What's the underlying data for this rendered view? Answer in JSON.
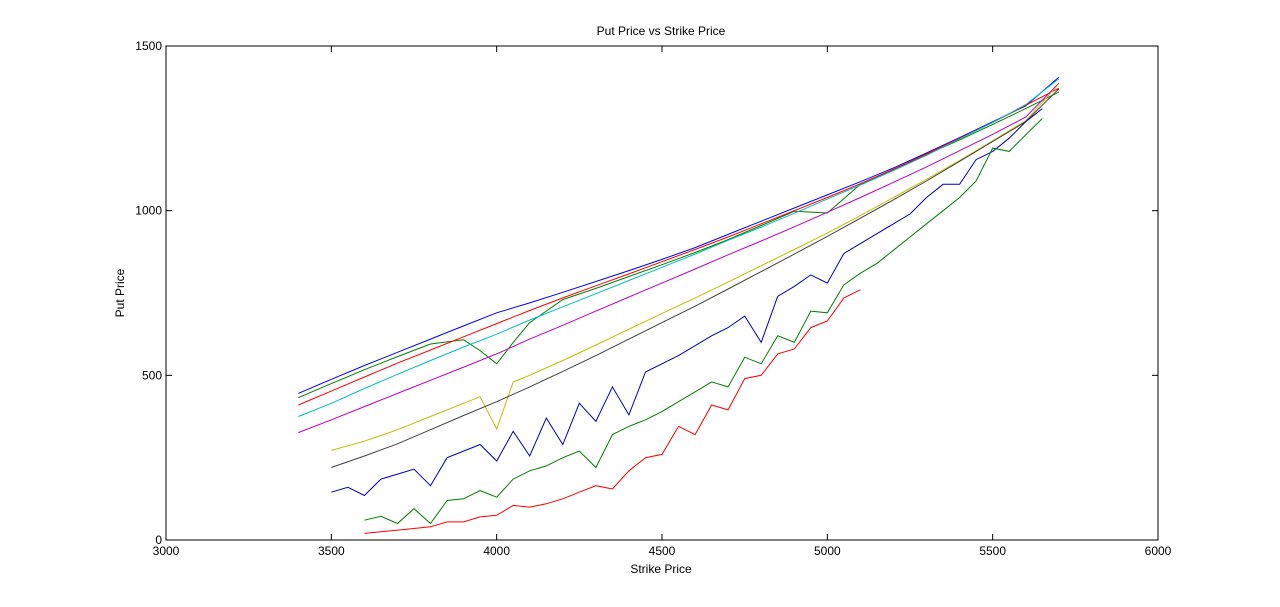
{
  "chart_data": {
    "type": "line",
    "title": "Put Price vs Strike Price",
    "xlabel": "Strike Price",
    "ylabel": "Put Price",
    "xlim": [
      3000,
      6000
    ],
    "ylim": [
      0,
      1500
    ],
    "xticks": [
      3000,
      3500,
      4000,
      4500,
      5000,
      5500,
      6000
    ],
    "yticks": [
      0,
      500,
      1000,
      1500
    ],
    "grid": false,
    "series": [
      {
        "color": "#0000ff",
        "x": [
          3400,
          3500,
          3600,
          3700,
          3800,
          3900,
          4000,
          4100,
          4200,
          4300,
          4400,
          4500,
          4600,
          4700,
          4800,
          4900,
          5000,
          5100,
          5200,
          5300,
          5400,
          5500,
          5600,
          5700
        ],
        "y": [
          445,
          488,
          530,
          570,
          610,
          650,
          690,
          720,
          752,
          785,
          818,
          852,
          888,
          928,
          968,
          1008,
          1048,
          1088,
          1130,
          1175,
          1222,
          1270,
          1318,
          1405
        ]
      },
      {
        "color": "#008000",
        "x": [
          3400,
          3500,
          3600,
          3700,
          3800,
          3900,
          3950,
          4000,
          4050,
          4100,
          4200,
          4300,
          4400,
          4500,
          4600,
          4700,
          4800,
          4900,
          5000,
          5100,
          5200,
          5300,
          5400,
          5500,
          5600,
          5700
        ],
        "y": [
          432,
          475,
          517,
          557,
          595,
          608,
          575,
          535,
          600,
          660,
          730,
          764,
          800,
          836,
          873,
          912,
          955,
          998,
          993,
          1080,
          1125,
          1170,
          1215,
          1262,
          1310,
          1360
        ]
      },
      {
        "color": "#ff0000",
        "x": [
          3400,
          3500,
          3600,
          3700,
          3800,
          3900,
          4000,
          4100,
          4200,
          4300,
          4400,
          4500,
          4600,
          4700,
          4800,
          4900,
          5000,
          5100,
          5200,
          5300,
          5400,
          5500,
          5600,
          5700
        ],
        "y": [
          410,
          452,
          495,
          537,
          577,
          617,
          657,
          697,
          735,
          772,
          808,
          845,
          882,
          920,
          960,
          1000,
          1040,
          1082,
          1126,
          1172,
          1220,
          1268,
          1320,
          1372
        ]
      },
      {
        "color": "#00bfbf",
        "x": [
          3400,
          3500,
          3600,
          3700,
          3800,
          3900,
          4000,
          4100,
          4200,
          4300,
          4400,
          4500,
          4600,
          4700,
          4800,
          4900,
          5000,
          5100,
          5200,
          5300,
          5400,
          5500,
          5600,
          5700
        ],
        "y": [
          375,
          415,
          460,
          503,
          545,
          586,
          625,
          668,
          708,
          748,
          788,
          828,
          868,
          910,
          950,
          992,
          1035,
          1078,
          1122,
          1168,
          1218,
          1268,
          1322,
          1400
        ]
      },
      {
        "color": "#bf00bf",
        "x": [
          3400,
          3500,
          3600,
          3700,
          3800,
          3900,
          4000,
          4100,
          4200,
          4300,
          4400,
          4500,
          4600,
          4700,
          4800,
          4900,
          5000,
          5100,
          5200,
          5300,
          5400,
          5500,
          5600,
          5700
        ],
        "y": [
          326,
          365,
          405,
          445,
          485,
          525,
          565,
          610,
          652,
          695,
          738,
          780,
          823,
          866,
          908,
          951,
          995,
          1040,
          1086,
          1133,
          1182,
          1232,
          1284,
          1387
        ]
      },
      {
        "color": "#bfbf00",
        "x": [
          3500,
          3600,
          3700,
          3800,
          3900,
          3950,
          4000,
          4050,
          4100,
          4200,
          4300,
          4400,
          4500,
          4600,
          4700,
          4800,
          4900,
          5000,
          5100,
          5200,
          5300,
          5400,
          5500,
          5600,
          5700
        ],
        "y": [
          272,
          300,
          335,
          375,
          415,
          435,
          337,
          480,
          500,
          545,
          592,
          640,
          688,
          735,
          783,
          833,
          882,
          932,
          985,
          1040,
          1095,
          1152,
          1212,
          1273,
          1385
        ]
      },
      {
        "color": "#404040",
        "x": [
          3500,
          3600,
          3700,
          3800,
          3900,
          4000,
          4100,
          4200,
          4300,
          4400,
          4500,
          4600,
          4700,
          4800,
          4900,
          5000,
          5100,
          5200,
          5300,
          5400,
          5500,
          5600,
          5700
        ],
        "y": [
          220,
          255,
          292,
          335,
          378,
          420,
          465,
          512,
          560,
          610,
          660,
          710,
          762,
          815,
          868,
          922,
          977,
          1033,
          1090,
          1150,
          1210,
          1270,
          1370
        ]
      },
      {
        "color": "#0000bf",
        "x": [
          3500,
          3550,
          3600,
          3650,
          3700,
          3750,
          3800,
          3850,
          3900,
          3950,
          4000,
          4050,
          4100,
          4150,
          4200,
          4250,
          4300,
          4350,
          4400,
          4450,
          4500,
          4550,
          4600,
          4650,
          4700,
          4750,
          4800,
          4850,
          4900,
          4950,
          5000,
          5050,
          5100,
          5150,
          5200,
          5250,
          5300,
          5350,
          5400,
          5450,
          5500,
          5550,
          5600,
          5650
        ],
        "y": [
          145,
          160,
          135,
          185,
          200,
          215,
          165,
          250,
          270,
          290,
          240,
          330,
          255,
          370,
          290,
          415,
          360,
          465,
          380,
          510,
          535,
          560,
          590,
          620,
          645,
          680,
          600,
          740,
          770,
          805,
          780,
          870,
          900,
          930,
          960,
          990,
          1040,
          1080,
          1080,
          1155,
          1180,
          1220,
          1270,
          1310
        ]
      },
      {
        "color": "#007f00",
        "x": [
          3600,
          3650,
          3700,
          3750,
          3800,
          3850,
          3900,
          3950,
          4000,
          4050,
          4100,
          4150,
          4200,
          4250,
          4300,
          4350,
          4400,
          4450,
          4500,
          4550,
          4600,
          4650,
          4700,
          4750,
          4800,
          4850,
          4900,
          4950,
          5000,
          5050,
          5100,
          5150,
          5200,
          5250,
          5300,
          5350,
          5400,
          5450,
          5500,
          5550,
          5600,
          5650
        ],
        "y": [
          60,
          72,
          50,
          95,
          50,
          120,
          125,
          150,
          130,
          185,
          210,
          225,
          250,
          270,
          220,
          320,
          345,
          365,
          390,
          420,
          450,
          480,
          465,
          555,
          535,
          620,
          600,
          695,
          690,
          775,
          810,
          840,
          880,
          920,
          960,
          1000,
          1040,
          1090,
          1190,
          1180,
          1230,
          1280
        ]
      },
      {
        "color": "#ff0000",
        "x": [
          3600,
          3650,
          3700,
          3750,
          3800,
          3850,
          3900,
          3950,
          4000,
          4050,
          4100,
          4150,
          4200,
          4250,
          4300,
          4350,
          4400,
          4450,
          4500,
          4550,
          4600,
          4650,
          4700,
          4750,
          4800,
          4850,
          4900,
          4950,
          5000,
          5050,
          5100
        ],
        "y": [
          20,
          25,
          30,
          35,
          40,
          55,
          55,
          70,
          75,
          105,
          100,
          110,
          125,
          145,
          165,
          155,
          210,
          250,
          260,
          345,
          320,
          410,
          395,
          490,
          500,
          565,
          580,
          645,
          665,
          735,
          760
        ]
      }
    ]
  }
}
